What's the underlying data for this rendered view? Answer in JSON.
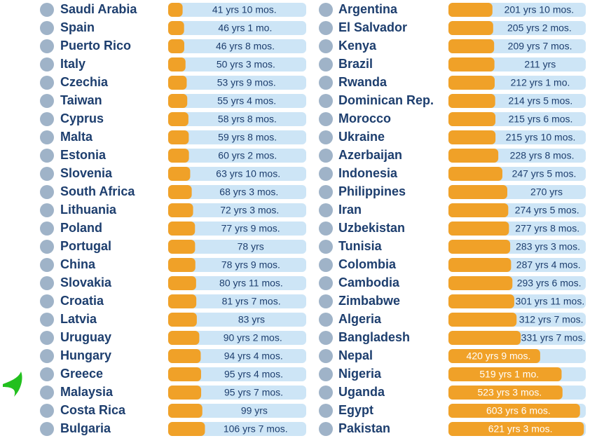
{
  "chart_data": [
    {
      "type": "bar",
      "orientation": "horizontal",
      "color": "#f0a128",
      "track_color": "#cde5f6",
      "xlim": [
        0,
        400
      ],
      "categories": [
        "Saudi Arabia",
        "Spain",
        "Puerto Rico",
        "Italy",
        "Czechia",
        "Taiwan",
        "Cyprus",
        "Malta",
        "Estonia",
        "Slovenia",
        "South Africa",
        "Lithuania",
        "Poland",
        "Portugal",
        "China",
        "Slovakia",
        "Croatia",
        "Latvia",
        "Uruguay",
        "Hungary",
        "Greece",
        "Malaysia",
        "Costa Rica",
        "Bulgaria"
      ],
      "values": [
        41.83,
        46.08,
        46.67,
        50.25,
        53.75,
        55.33,
        58.67,
        59.67,
        60.17,
        63.83,
        68.25,
        72.25,
        77.75,
        78,
        78.75,
        80.92,
        81.58,
        83,
        90.17,
        94.33,
        95.33,
        95.58,
        99,
        106.58
      ],
      "value_labels": [
        "41 yrs 10 mos.",
        "46 yrs 1 mo.",
        "46 yrs 8 mos.",
        "50 yrs 3 mos.",
        "53 yrs 9 mos.",
        "55 yrs 4 mos.",
        "58 yrs 8 mos.",
        "59 yrs 8 mos.",
        "60 yrs 2 mos.",
        "63 yrs 10 mos.",
        "68 yrs 3 mos.",
        "72 yrs 3 mos.",
        "77 yrs 9 mos.",
        "78 yrs",
        "78 yrs 9 mos.",
        "80 yrs 11 mos.",
        "81 yrs 7 mos.",
        "83 yrs",
        "90 yrs 2 mos.",
        "94 yrs 4 mos.",
        "95 yrs 4 mos.",
        "95 yrs 7 mos.",
        "99 yrs",
        "106 yrs 7 mos."
      ]
    },
    {
      "type": "bar",
      "orientation": "horizontal",
      "color": "#f0a128",
      "track_color": "#cde5f6",
      "xlim": [
        0,
        630
      ],
      "categories": [
        "Argentina",
        "El Salvador",
        "Kenya",
        "Brazil",
        "Rwanda",
        "Dominican Rep.",
        "Morocco",
        "Ukraine",
        "Azerbaijan",
        "Indonesia",
        "Philippines",
        "Iran",
        "Uzbekistan",
        "Tunisia",
        "Colombia",
        "Cambodia",
        "Zimbabwe",
        "Algeria",
        "Bangladesh",
        "Nepal",
        "Nigeria",
        "Uganda",
        "Egypt",
        "Pakistan"
      ],
      "values": [
        201.83,
        205.17,
        209.58,
        211,
        212.08,
        214.42,
        215.5,
        215.83,
        228.67,
        247.42,
        270,
        274.42,
        277.67,
        283.25,
        287.33,
        293.5,
        301.92,
        312.58,
        331.58,
        420.75,
        519.08,
        523.25,
        603.5,
        621.25
      ],
      "value_labels": [
        "201 yrs 10 mos.",
        "205 yrs 2 mos.",
        "209 yrs 7 mos.",
        "211 yrs",
        "212 yrs 1 mo.",
        "214 yrs 5 mos.",
        "215 yrs 6 mos.",
        "215 yrs 10 mos.",
        "228 yrs 8 mos.",
        "247 yrs 5 mos.",
        "270 yrs",
        "274 yrs 5 mos.",
        "277 yrs 8 mos.",
        "283 yrs 3 mos.",
        "287 yrs 4 mos.",
        "293 yrs 6 mos.",
        "301 yrs 11 mos.",
        "312 yrs 7 mos.",
        "331 yrs 7 mos.",
        "420 yrs 9 mos.",
        "519 yrs 1 mo.",
        "523 yrs 3 mos.",
        "603 yrs 6 mos.",
        "621 yrs 3 mos."
      ]
    }
  ]
}
